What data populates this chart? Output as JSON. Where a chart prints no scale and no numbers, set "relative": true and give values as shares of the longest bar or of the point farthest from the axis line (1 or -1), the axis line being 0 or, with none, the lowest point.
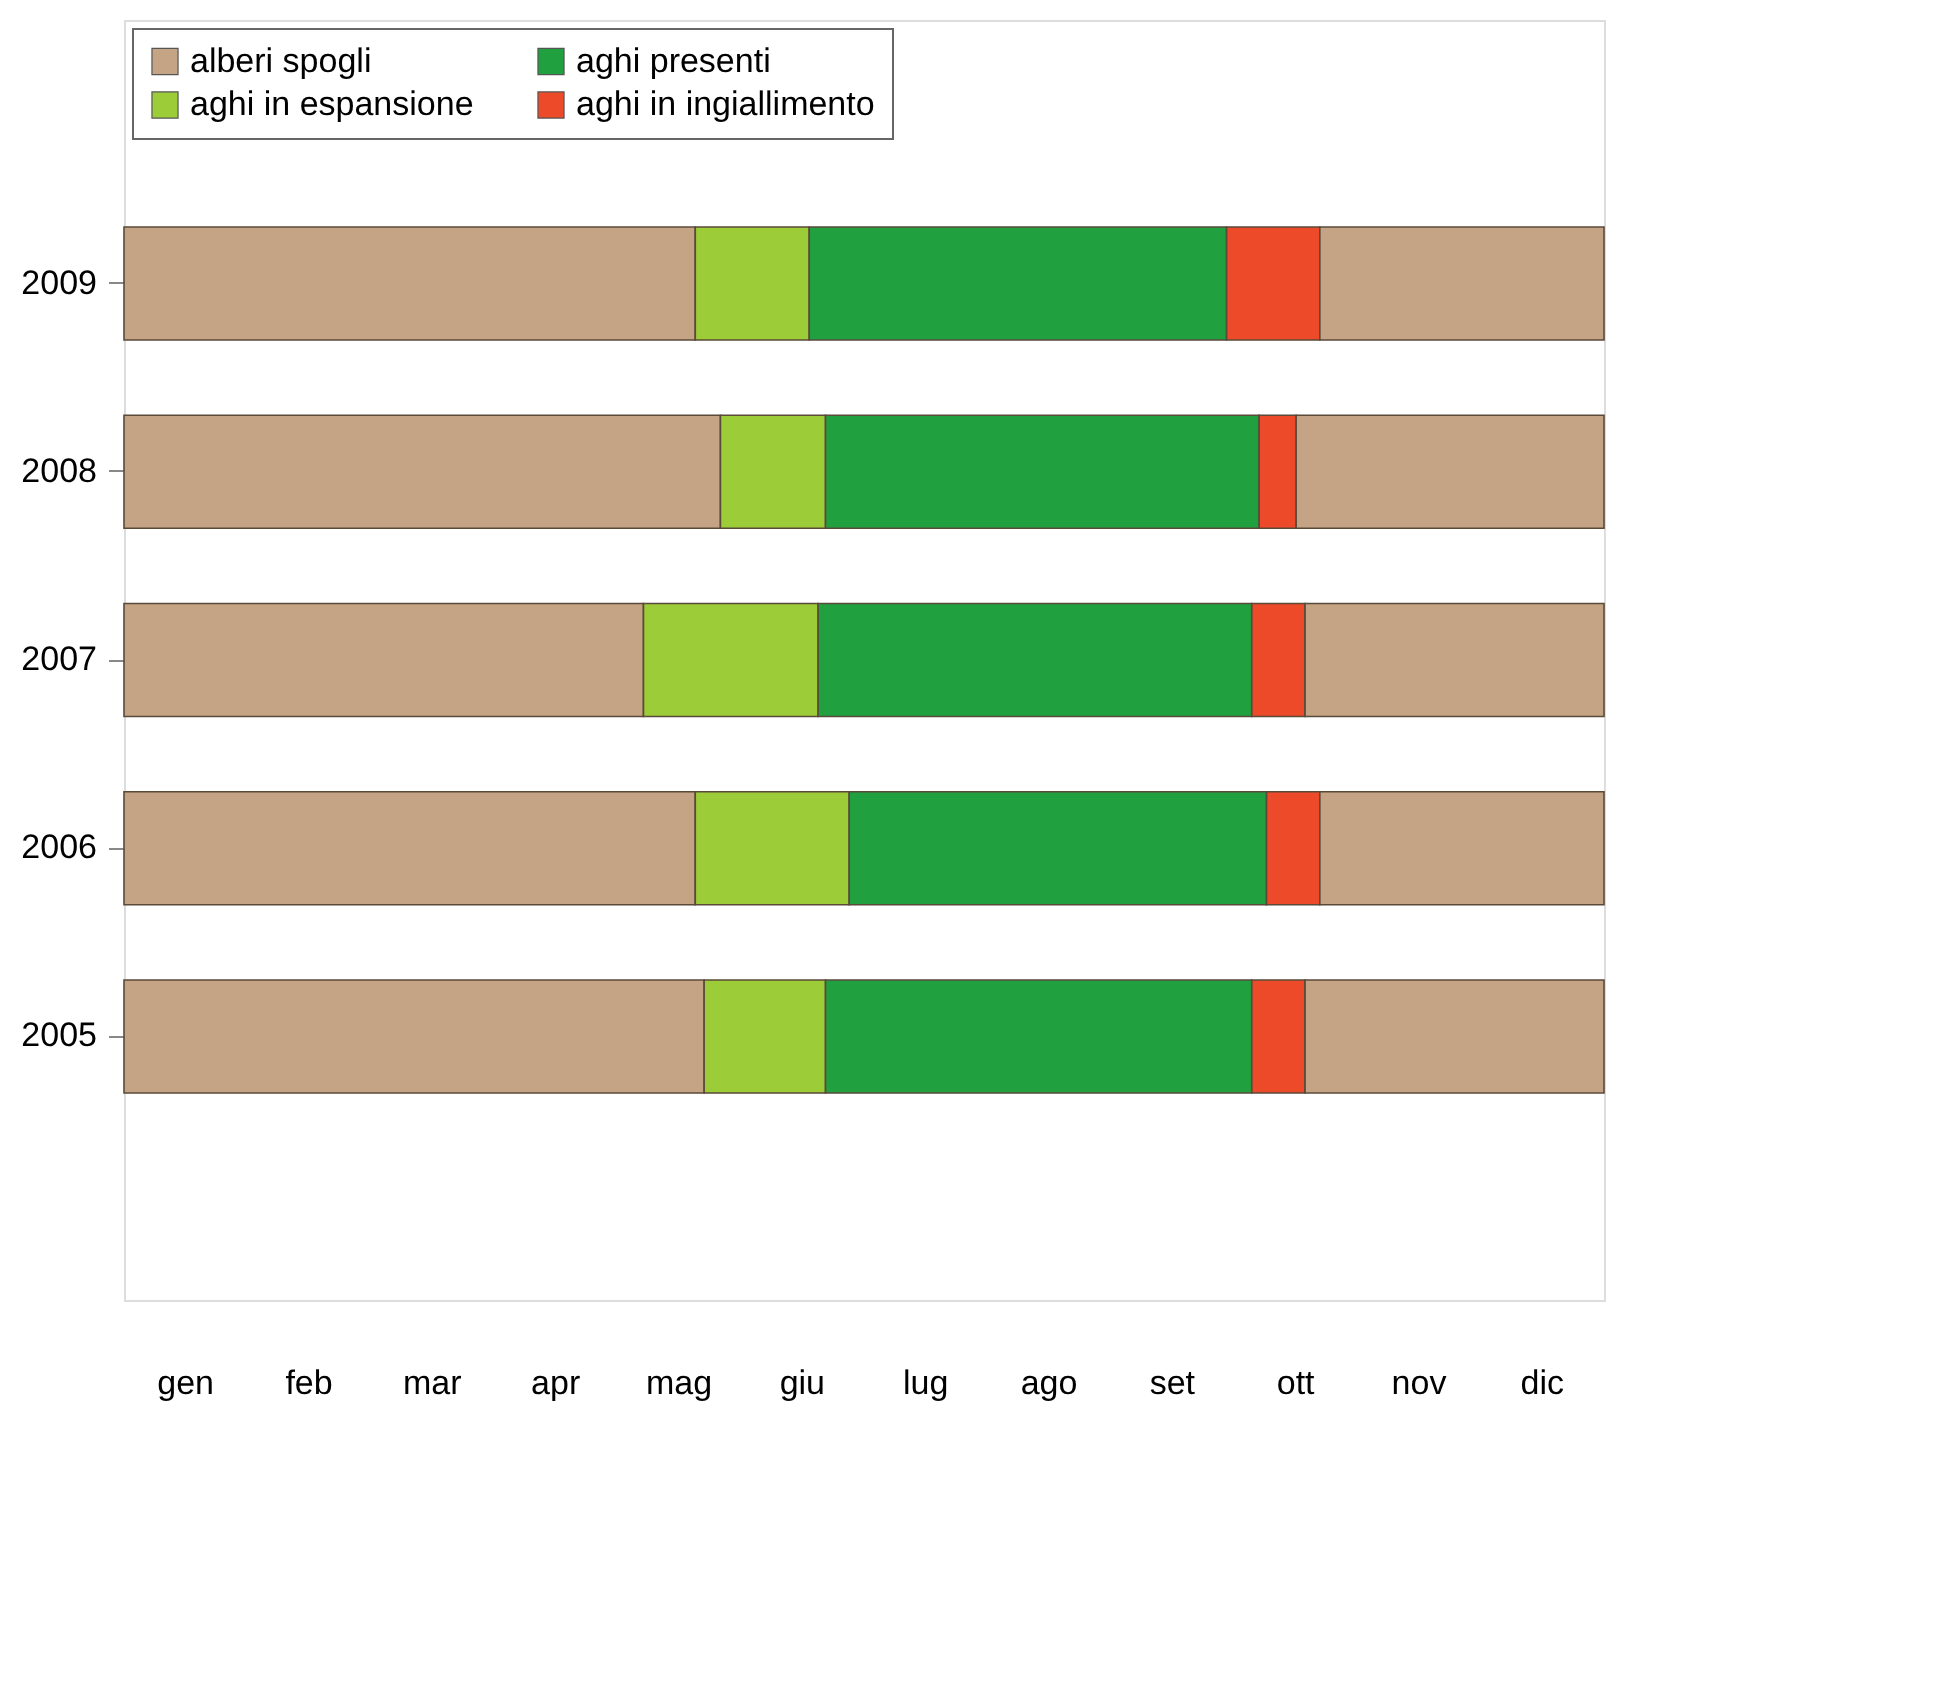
{
  "chart_data": {
    "type": "bar",
    "orientation": "horizontal",
    "stacked": true,
    "relative": true,
    "categories": [
      null,
      "2009",
      "2008",
      "2007",
      "2006",
      "2005",
      null
    ],
    "series": [
      {
        "name": "alberi spogli",
        "color": "#c4a484",
        "values": [
          null,
          0.386,
          0.403,
          0.351,
          0.386,
          0.392,
          null
        ]
      },
      {
        "name": "aghi in espansione",
        "color": "#9ccc38",
        "values": [
          null,
          0.077,
          0.071,
          0.118,
          0.104,
          0.082,
          null
        ]
      },
      {
        "name": "aghi presenti",
        "color": "#21a040",
        "values": [
          null,
          0.282,
          0.293,
          0.293,
          0.282,
          0.288,
          null
        ]
      },
      {
        "name": "aghi in ingiallimento",
        "color": "#ec4a28",
        "values": [
          null,
          0.063,
          0.025,
          0.036,
          0.036,
          0.036,
          null
        ]
      },
      {
        "color": "#c4a484",
        "values": [
          null,
          0.192,
          0.208,
          0.202,
          0.192,
          0.202,
          null
        ]
      }
    ],
    "annotations": [
      "gen",
      "feb",
      "mar",
      "apr",
      "mag",
      "giu",
      "lug",
      "ago",
      "set",
      "ott",
      "nov",
      "dic"
    ],
    "legend": "top left"
  }
}
